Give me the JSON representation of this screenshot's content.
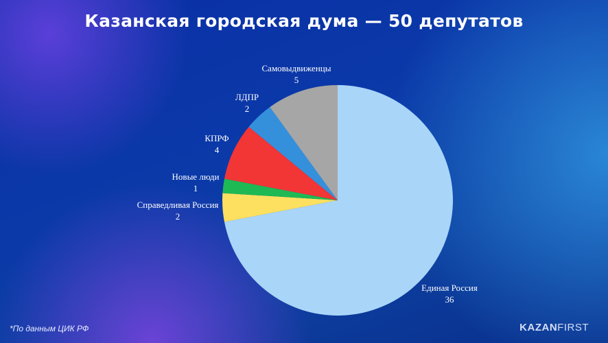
{
  "title": "Казанская городская дума — 50 депутатов",
  "footnote": "*По данным ЦИК РФ",
  "logo": {
    "part1": "KAZAN",
    "part2": "FIRST"
  },
  "chart_data": {
    "type": "pie",
    "title": "Казанская городская дума — 50 депутатов",
    "total": 50,
    "slices": [
      {
        "label": "Единая Россия",
        "value": 36,
        "color": "#a9d5f8"
      },
      {
        "label": "Справедливая Россия",
        "value": 2,
        "color": "#fde060"
      },
      {
        "label": "Новые люди",
        "value": 1,
        "color": "#1eb954"
      },
      {
        "label": "КПРФ",
        "value": 4,
        "color": "#f23535"
      },
      {
        "label": "ЛДПР",
        "value": 2,
        "color": "#3590dc"
      },
      {
        "label": "Самовыдвиженцы",
        "value": 5,
        "color": "#a6a6a6"
      }
    ]
  }
}
